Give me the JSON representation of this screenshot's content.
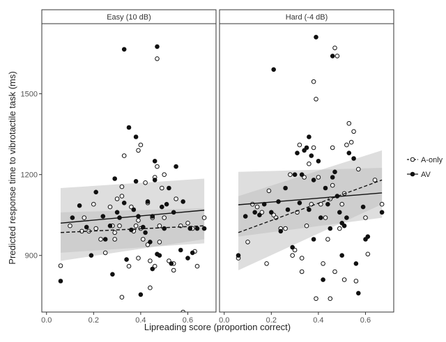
{
  "chart_data": {
    "type": "scatter",
    "xlabel": "Lipreading score (proportion correct)",
    "ylabel": "Predicted response time to vibrotactile task (ms)",
    "xlim": [
      -0.02,
      0.72
    ],
    "ylim": [
      690,
      1760
    ],
    "xticks": [
      0.0,
      0.2,
      0.4,
      0.6
    ],
    "xtick_labels": [
      "0.0",
      "0.2",
      "0.4",
      "0.6"
    ],
    "yticks": [
      900,
      1200,
      1500
    ],
    "ytick_labels": [
      "900",
      "1200",
      "1500"
    ],
    "grid": false,
    "legend": {
      "position": "right",
      "entries": [
        {
          "label": "A-only",
          "marker": "open-circle",
          "line": "dashed"
        },
        {
          "label": "AV",
          "marker": "filled-circle",
          "line": "solid"
        }
      ]
    },
    "panels": [
      {
        "title": "Easy (10 dB)",
        "series": [
          {
            "name": "A-only",
            "marker": "open",
            "fit": {
              "x": [
                0.06,
                0.67
              ],
              "y": [
                985,
                1010
              ],
              "ci_lower": [
                910,
                945
              ],
              "ci_upper": [
                1060,
                1075
              ]
            },
            "points": [
              [
                0.06,
                862
              ],
              [
                0.1,
                1010
              ],
              [
                0.15,
                990
              ],
              [
                0.16,
                1040
              ],
              [
                0.18,
                990
              ],
              [
                0.2,
                1090
              ],
              [
                0.21,
                1000
              ],
              [
                0.23,
                960
              ],
              [
                0.25,
                910
              ],
              [
                0.27,
                1080
              ],
              [
                0.28,
                1010
              ],
              [
                0.29,
                985
              ],
              [
                0.29,
                960
              ],
              [
                0.3,
                1110
              ],
              [
                0.31,
                1010
              ],
              [
                0.32,
                1155
              ],
              [
                0.32,
                1120
              ],
              [
                0.33,
                1270
              ],
              [
                0.35,
                860
              ],
              [
                0.36,
                1080
              ],
              [
                0.37,
                990
              ],
              [
                0.38,
                1010
              ],
              [
                0.39,
                1030
              ],
              [
                0.39,
                1290
              ],
              [
                0.4,
                1310
              ],
              [
                0.4,
                1000
              ],
              [
                0.41,
                960
              ],
              [
                0.42,
                1170
              ],
              [
                0.43,
                940
              ],
              [
                0.44,
                880
              ],
              [
                0.44,
                780
              ],
              [
                0.45,
                1040
              ],
              [
                0.46,
                860
              ],
              [
                0.46,
                1190
              ],
              [
                0.47,
                1630
              ],
              [
                0.47,
                1230
              ],
              [
                0.48,
                1010
              ],
              [
                0.48,
                950
              ],
              [
                0.49,
                1150
              ],
              [
                0.5,
                1200
              ],
              [
                0.5,
                1040
              ],
              [
                0.52,
                880
              ],
              [
                0.54,
                870
              ],
              [
                0.55,
                1110
              ],
              [
                0.57,
                1010
              ],
              [
                0.58,
                690
              ],
              [
                0.6,
                1020
              ],
              [
                0.62,
                1000
              ],
              [
                0.63,
                915
              ],
              [
                0.64,
                860
              ],
              [
                0.67,
                1040
              ],
              [
                0.32,
                745
              ],
              [
                0.39,
                890
              ],
              [
                0.43,
                1095
              ],
              [
                0.54,
                845
              ]
            ]
          },
          {
            "name": "AV",
            "marker": "filled",
            "fit": {
              "x": [
                0.06,
                0.67
              ],
              "y": [
                1020,
                1068
              ],
              "ci_lower": [
                880,
                960
              ],
              "ci_upper": [
                1150,
                1185
              ]
            },
            "points": [
              [
                0.06,
                805
              ],
              [
                0.11,
                1040
              ],
              [
                0.14,
                1085
              ],
              [
                0.17,
                1005
              ],
              [
                0.19,
                900
              ],
              [
                0.21,
                1135
              ],
              [
                0.24,
                1045
              ],
              [
                0.25,
                960
              ],
              [
                0.27,
                1010
              ],
              [
                0.28,
                830
              ],
              [
                0.29,
                1185
              ],
              [
                0.3,
                1060
              ],
              [
                0.31,
                1040
              ],
              [
                0.33,
                1665
              ],
              [
                0.33,
                1095
              ],
              [
                0.34,
                885
              ],
              [
                0.35,
                1375
              ],
              [
                0.36,
                995
              ],
              [
                0.37,
                1070
              ],
              [
                0.38,
                1340
              ],
              [
                0.38,
                1175
              ],
              [
                0.39,
                1045
              ],
              [
                0.4,
                755
              ],
              [
                0.41,
                1005
              ],
              [
                0.42,
                985
              ],
              [
                0.43,
                1100
              ],
              [
                0.44,
                950
              ],
              [
                0.45,
                850
              ],
              [
                0.45,
                1045
              ],
              [
                0.46,
                1250
              ],
              [
                0.46,
                1180
              ],
              [
                0.47,
                1675
              ],
              [
                0.47,
                905
              ],
              [
                0.48,
                900
              ],
              [
                0.49,
                1080
              ],
              [
                0.5,
                1000
              ],
              [
                0.51,
                1090
              ],
              [
                0.52,
                1150
              ],
              [
                0.53,
                870
              ],
              [
                0.54,
                1060
              ],
              [
                0.55,
                1230
              ],
              [
                0.57,
                920
              ],
              [
                0.58,
                1100
              ],
              [
                0.6,
                890
              ],
              [
                0.61,
                1000
              ],
              [
                0.62,
                910
              ],
              [
                0.64,
                1000
              ],
              [
                0.67,
                1000
              ]
            ]
          }
        ]
      },
      {
        "title": "Hard (-4 dB)",
        "series": [
          {
            "name": "A-only",
            "marker": "open",
            "fit": {
              "x": [
                0.06,
                0.67
              ],
              "y": [
                985,
                1180
              ],
              "ci_lower": [
                845,
                1090
              ],
              "ci_upper": [
                1120,
                1290
              ]
            },
            "points": [
              [
                0.06,
                890
              ],
              [
                0.1,
                950
              ],
              [
                0.12,
                1090
              ],
              [
                0.14,
                1080
              ],
              [
                0.16,
                1060
              ],
              [
                0.18,
                870
              ],
              [
                0.19,
                1140
              ],
              [
                0.21,
                1050
              ],
              [
                0.22,
                1040
              ],
              [
                0.24,
                1000
              ],
              [
                0.26,
                1000
              ],
              [
                0.28,
                1200
              ],
              [
                0.29,
                900
              ],
              [
                0.3,
                920
              ],
              [
                0.31,
                1060
              ],
              [
                0.32,
                1310
              ],
              [
                0.33,
                840
              ],
              [
                0.33,
                890
              ],
              [
                0.34,
                1190
              ],
              [
                0.35,
                1010
              ],
              [
                0.36,
                1240
              ],
              [
                0.37,
                1090
              ],
              [
                0.38,
                1300
              ],
              [
                0.38,
                1545
              ],
              [
                0.39,
                1480
              ],
              [
                0.39,
                740
              ],
              [
                0.4,
                1190
              ],
              [
                0.41,
                1090
              ],
              [
                0.42,
                870
              ],
              [
                0.43,
                1040
              ],
              [
                0.44,
                960
              ],
              [
                0.45,
                1110
              ],
              [
                0.46,
                1300
              ],
              [
                0.46,
                1160
              ],
              [
                0.47,
                1670
              ],
              [
                0.47,
                840
              ],
              [
                0.48,
                1640
              ],
              [
                0.49,
                1000
              ],
              [
                0.5,
                1090
              ],
              [
                0.51,
                1130
              ],
              [
                0.51,
                810
              ],
              [
                0.52,
                1310
              ],
              [
                0.53,
                1390
              ],
              [
                0.54,
                1320
              ],
              [
                0.55,
                1360
              ],
              [
                0.56,
                805
              ],
              [
                0.57,
                1220
              ],
              [
                0.6,
                1040
              ],
              [
                0.61,
                905
              ],
              [
                0.64,
                1180
              ],
              [
                0.67,
                1090
              ],
              [
                0.45,
                740
              ]
            ]
          },
          {
            "name": "AV",
            "marker": "filled",
            "fit": {
              "x": [
                0.06,
                0.67
              ],
              "y": [
                1088,
                1132
              ],
              "ci_lower": [
                970,
                1040
              ],
              "ci_upper": [
                1210,
                1225
              ]
            },
            "points": [
              [
                0.06,
                900
              ],
              [
                0.09,
                1045
              ],
              [
                0.13,
                1060
              ],
              [
                0.15,
                1050
              ],
              [
                0.17,
                1090
              ],
              [
                0.2,
                1060
              ],
              [
                0.21,
                1590
              ],
              [
                0.23,
                1100
              ],
              [
                0.24,
                990
              ],
              [
                0.26,
                1150
              ],
              [
                0.27,
                1070
              ],
              [
                0.29,
                930
              ],
              [
                0.3,
                1200
              ],
              [
                0.31,
                1280
              ],
              [
                0.32,
                1095
              ],
              [
                0.33,
                1200
              ],
              [
                0.34,
                1290
              ],
              [
                0.35,
                1300
              ],
              [
                0.36,
                1340
              ],
              [
                0.36,
                1070
              ],
              [
                0.37,
                1270
              ],
              [
                0.38,
                1180
              ],
              [
                0.38,
                960
              ],
              [
                0.39,
                1710
              ],
              [
                0.4,
                1250
              ],
              [
                0.41,
                1040
              ],
              [
                0.42,
                810
              ],
              [
                0.43,
                1150
              ],
              [
                0.44,
                1090
              ],
              [
                0.45,
                1000
              ],
              [
                0.46,
                1640
              ],
              [
                0.46,
                1190
              ],
              [
                0.47,
                1210
              ],
              [
                0.48,
                1120
              ],
              [
                0.49,
                1060
              ],
              [
                0.5,
                1020
              ],
              [
                0.5,
                900
              ],
              [
                0.51,
                1010
              ],
              [
                0.52,
                1040
              ],
              [
                0.53,
                1280
              ],
              [
                0.55,
                1260
              ],
              [
                0.56,
                870
              ],
              [
                0.57,
                760
              ],
              [
                0.59,
                1080
              ],
              [
                0.6,
                960
              ],
              [
                0.61,
                970
              ],
              [
                0.67,
                1060
              ]
            ]
          }
        ]
      }
    ]
  }
}
